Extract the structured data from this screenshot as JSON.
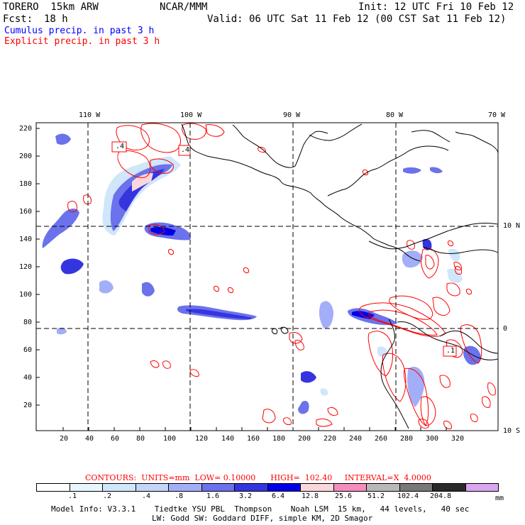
{
  "header": {
    "model": "TORERO  15km ARW",
    "center": "NCAR/MMM",
    "init": "Init: 12 UTC Fri 10 Feb 12",
    "fcst_label": "Fcst:",
    "fcst_value": "18 h",
    "valid": "Valid: 06 UTC Sat 11 Feb 12 (00 CST Sat 11 Feb 12)",
    "line_cumulus": "Cumulus precip. in past 3 h",
    "line_explicit": "Explicit precip. in past 3 h"
  },
  "colors": {
    "cumulus_text": "#0000ff",
    "explicit_text": "#ff0000",
    "contour": "#ff0000"
  },
  "axes": {
    "lon_labels": [
      "110 W",
      "100 W",
      "90 W",
      "80 W",
      "70 W"
    ],
    "lat_labels": [
      "10 N",
      "0",
      "10 S"
    ],
    "y_ticks": [
      "220",
      "200",
      "180",
      "160",
      "140",
      "120",
      "100",
      "80",
      "60",
      "40",
      "20"
    ],
    "x_ticks": [
      "20",
      "40",
      "60",
      "80",
      "100",
      "120",
      "140",
      "160",
      "180",
      "200",
      "220",
      "240",
      "260",
      "280",
      "300",
      "320"
    ]
  },
  "map_labels": {
    "contour_label_1": ".4",
    "contour_label_2": ".4",
    "contour_label_3": ".1"
  },
  "contour_info": {
    "text": "CONTOURS:  UNITS=mm  LOW= 0.10000      HIGH=  102.40     INTERVAL=X  4.0000"
  },
  "legend": {
    "colors": [
      "#ffffff",
      "#e8f6fc",
      "#cfe6fb",
      "#c3d6fa",
      "#a3aef8",
      "#6b72ec",
      "#3535e0",
      "#0000e8",
      "#fad7dc",
      "#f48cc0",
      "#b8b8b8",
      "#787878",
      "#2a2a2a",
      "#d9a6f0"
    ],
    "labels": [
      ".1",
      ".2",
      ".4",
      ".8",
      "1.6",
      "3.2",
      "6.4",
      "12.8",
      "25.6",
      "51.2",
      "102.4",
      "204.8"
    ],
    "unit": "mm"
  },
  "footer": {
    "line1": "Model Info: V3.3.1    Tiedtke YSU PBL  Thompson    Noah LSM  15 km,   44 levels,   40 sec",
    "line2": "LW: Godd SW: Goddard DIFF, simple KM, 2D Smagor"
  }
}
